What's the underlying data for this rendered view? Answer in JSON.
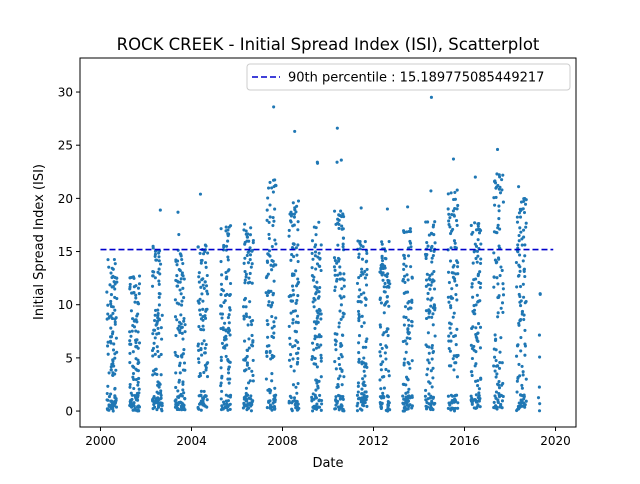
{
  "chart_data": {
    "type": "scatter",
    "title": "ROCK CREEK - Initial Spread Index (ISI), Scatterplot",
    "xlabel": "Date",
    "ylabel": "Initial Spread Index (ISI)",
    "xlim": [
      1999.1,
      2020.9
    ],
    "ylim": [
      -1.5,
      33.2
    ],
    "xticks": [
      2000,
      2004,
      2008,
      2012,
      2016,
      2020
    ],
    "yticks": [
      0,
      5,
      10,
      15,
      20,
      25,
      30
    ],
    "legend_position": "upper right",
    "reference_line": {
      "label": "90th percentile : 15.189775085449217",
      "value": 15.189775085449217,
      "x_range": [
        2000.0,
        2019.9
      ],
      "color": "#0000cc",
      "style": "dashed"
    },
    "series": [
      {
        "color": "#1f77b4",
        "note_seasons": "Points are daily readings clustered in fire seasons (approx. May–Sep) of each year 2000–2019",
        "seasons": [
          {
            "x_center": 2000.5,
            "x_spread": 0.22,
            "y_max": 14.5,
            "outliers": []
          },
          {
            "x_center": 2001.5,
            "x_spread": 0.22,
            "y_max": 12.8,
            "outliers": []
          },
          {
            "x_center": 2002.5,
            "x_spread": 0.22,
            "y_max": 15.5,
            "outliers": [
              18.9
            ]
          },
          {
            "x_center": 2003.5,
            "x_spread": 0.22,
            "y_max": 15.2,
            "outliers": [
              18.7,
              16.6
            ]
          },
          {
            "x_center": 2004.5,
            "x_spread": 0.22,
            "y_max": 16.0,
            "outliers": [
              20.4
            ]
          },
          {
            "x_center": 2005.5,
            "x_spread": 0.22,
            "y_max": 17.5,
            "outliers": []
          },
          {
            "x_center": 2006.5,
            "x_spread": 0.22,
            "y_max": 17.6,
            "outliers": []
          },
          {
            "x_center": 2007.5,
            "x_spread": 0.22,
            "y_max": 22.0,
            "outliers": [
              28.6,
              21.5
            ]
          },
          {
            "x_center": 2008.5,
            "x_spread": 0.22,
            "y_max": 19.8,
            "outliers": [
              26.3
            ]
          },
          {
            "x_center": 2009.5,
            "x_spread": 0.22,
            "y_max": 18.0,
            "outliers": [
              23.4,
              23.3
            ]
          },
          {
            "x_center": 2010.5,
            "x_spread": 0.22,
            "y_max": 19.0,
            "outliers": [
              26.6,
              23.6,
              23.4
            ]
          },
          {
            "x_center": 2011.5,
            "x_spread": 0.22,
            "y_max": 16.0,
            "outliers": [
              19.1
            ]
          },
          {
            "x_center": 2012.5,
            "x_spread": 0.22,
            "y_max": 16.0,
            "outliers": [
              19.0
            ]
          },
          {
            "x_center": 2013.5,
            "x_spread": 0.22,
            "y_max": 17.2,
            "outliers": [
              19.2
            ]
          },
          {
            "x_center": 2014.5,
            "x_spread": 0.22,
            "y_max": 18.0,
            "outliers": [
              29.5,
              20.7
            ]
          },
          {
            "x_center": 2015.5,
            "x_spread": 0.22,
            "y_max": 21.0,
            "outliers": [
              23.7
            ]
          },
          {
            "x_center": 2016.5,
            "x_spread": 0.22,
            "y_max": 18.0,
            "outliers": [
              22.0
            ]
          },
          {
            "x_center": 2017.5,
            "x_spread": 0.22,
            "y_max": 22.5,
            "outliers": [
              24.6
            ]
          },
          {
            "x_center": 2018.5,
            "x_spread": 0.22,
            "y_max": 20.0,
            "outliers": [
              21.1
            ]
          },
          {
            "x_center": 2019.3,
            "x_spread": 0.05,
            "y_max": 11.2,
            "outliers": []
          }
        ]
      }
    ]
  }
}
